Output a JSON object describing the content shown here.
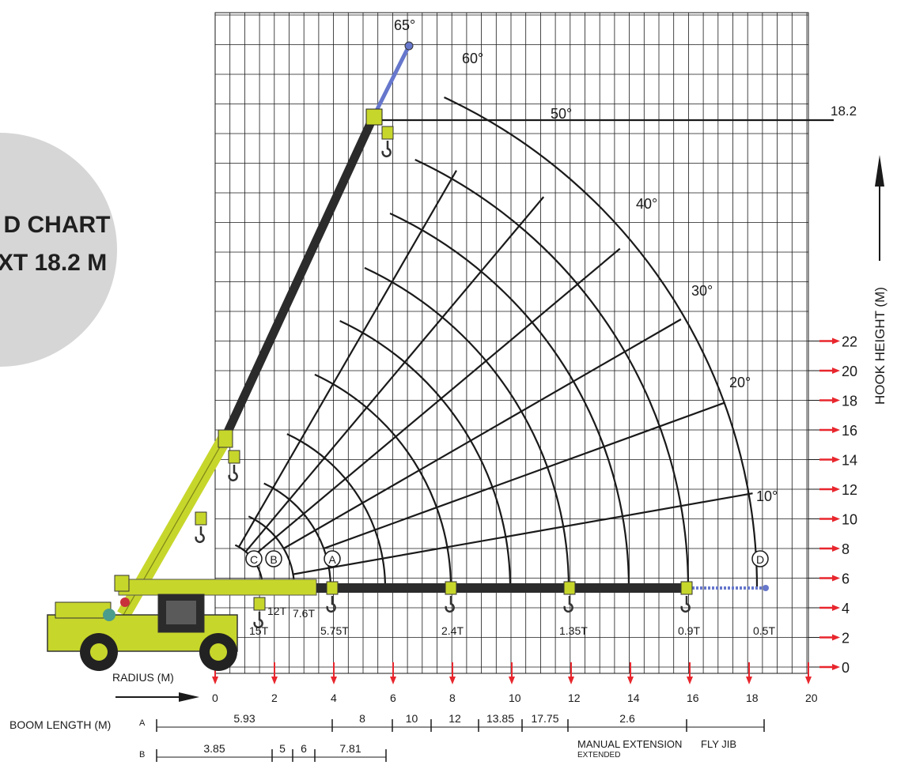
{
  "badge": {
    "line1": "D CHART",
    "line2": "XT 18.2 M"
  },
  "y_axis": {
    "label": "HOOK HEIGHT (M)",
    "ticks": [
      "0",
      "2",
      "4",
      "6",
      "8",
      "10",
      "12",
      "14",
      "16",
      "18",
      "20",
      "22"
    ],
    "max_height_label": "18.2"
  },
  "x_axis": {
    "label": "RADIUS (M)",
    "ticks": [
      "0",
      "2",
      "4",
      "6",
      "8",
      "10",
      "12",
      "14",
      "16",
      "18",
      "20"
    ]
  },
  "angles": [
    "10°",
    "20°",
    "30°",
    "40°",
    "50°",
    "60°",
    "65°"
  ],
  "stations": [
    {
      "letter": "C",
      "load": "15T"
    },
    {
      "letter": "B",
      "load": "12T"
    },
    {
      "letter": "A",
      "load": "5.75T"
    },
    {
      "letter": "D",
      "load": "0.5T"
    }
  ],
  "loads": [
    "7.6T",
    "2.4T",
    "1.35T",
    "0.9T"
  ],
  "boom_length": {
    "label": "BOOM LENGTH (M)",
    "row_a_label": "A",
    "row_b_label": "B",
    "row_a": [
      "5.93",
      "8",
      "10",
      "12",
      "13.85",
      "17.75",
      "2.6"
    ],
    "row_b": [
      "3.85",
      "5",
      "6",
      "7.81"
    ],
    "manual_extension_label": "MANUAL EXTENSION",
    "extended_label": "EXTENDED",
    "fly_jib_label": "FLY JIB"
  },
  "colors": {
    "grid": "#1a1a1a",
    "crane_green": "#c7d62b",
    "boom_dark": "#2b2b2b",
    "jib_blue": "#6677cc",
    "arrow_red": "#e8262d",
    "badge_gray": "#d6d6d6"
  }
}
